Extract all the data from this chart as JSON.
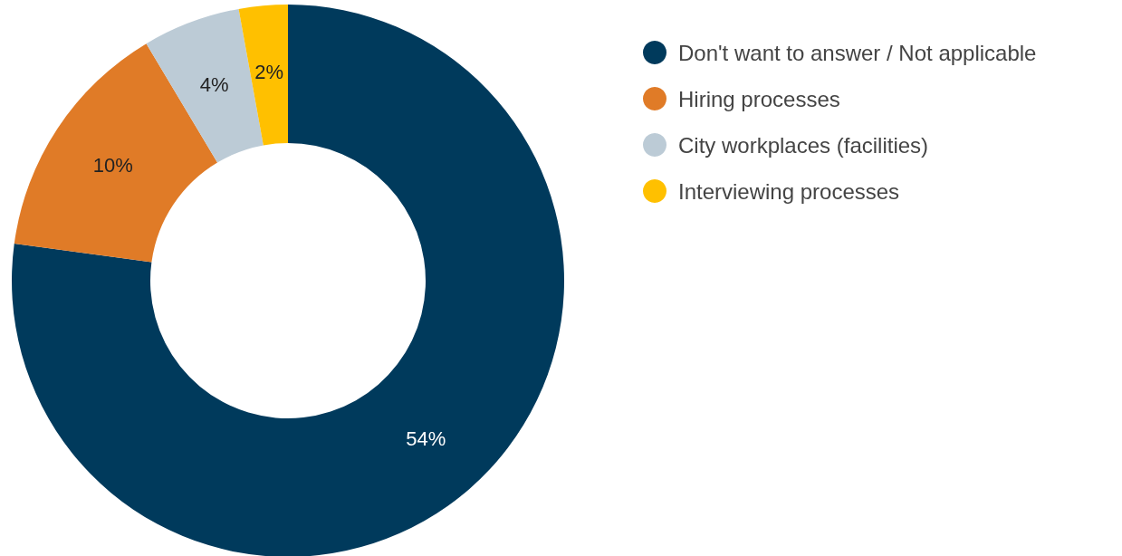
{
  "chart_data": {
    "type": "donut",
    "categories": [
      "Don't want to answer / Not applicable",
      "Hiring processes",
      "City workplaces (facilities)",
      "Interviewing processes"
    ],
    "values": [
      54,
      10,
      4,
      2
    ],
    "value_labels": [
      "54%",
      "10%",
      "4%",
      "2%"
    ],
    "colors": [
      "#003a5c",
      "#e07b27",
      "#bccbd6",
      "#ffc000"
    ],
    "legend": "top right"
  }
}
